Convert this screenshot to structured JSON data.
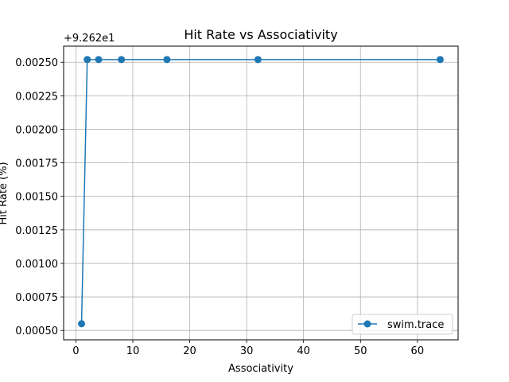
{
  "chart_data": {
    "type": "line",
    "title": "Hit Rate vs Associativity",
    "xlabel": "Associativity",
    "ylabel": "Hit Rate (%)",
    "y_offset_label": "+9.262e1",
    "xlim": [
      -2.15,
      67.15
    ],
    "ylim": [
      0.00043,
      0.00262
    ],
    "xticks": [
      0,
      10,
      20,
      30,
      40,
      50,
      60
    ],
    "xtick_labels": [
      "0",
      "10",
      "20",
      "30",
      "40",
      "50",
      "60"
    ],
    "yticks": [
      0.0005,
      0.00075,
      0.001,
      0.00125,
      0.0015,
      0.00175,
      0.002,
      0.00225,
      0.0025
    ],
    "ytick_labels": [
      "0.00050",
      "0.00075",
      "0.00100",
      "0.00125",
      "0.00150",
      "0.00175",
      "0.00200",
      "0.00225",
      "0.00250"
    ],
    "grid": true,
    "legend_position": "lower-right",
    "series": [
      {
        "name": "swim.trace",
        "color": "#1f77b4",
        "marker": "circle",
        "x": [
          1,
          2,
          4,
          8,
          16,
          32,
          64
        ],
        "y": [
          0.00055,
          0.00252,
          0.00252,
          0.00252,
          0.00252,
          0.00252,
          0.00252
        ]
      }
    ]
  }
}
